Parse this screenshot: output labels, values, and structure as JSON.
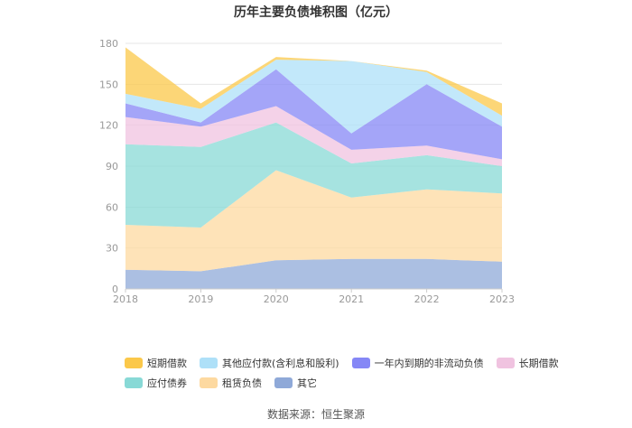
{
  "chart_data": {
    "type": "area",
    "stacked": true,
    "title": "历年主要负债堆积图（亿元）",
    "x": [
      "2018",
      "2019",
      "2020",
      "2021",
      "2022",
      "2023"
    ],
    "ylim": [
      0,
      180
    ],
    "yticks": [
      0,
      30,
      60,
      90,
      120,
      150,
      180
    ],
    "grid": true,
    "legend_position": "bottom",
    "series": [
      {
        "name": "其它",
        "color": "#8fa9d8",
        "values": [
          14,
          13,
          21,
          22,
          22,
          20
        ]
      },
      {
        "name": "租赁负债",
        "color": "#fdd9a0",
        "values": [
          33,
          32,
          66,
          45,
          51,
          50
        ]
      },
      {
        "name": "应付债券",
        "color": "#88d9d6",
        "values": [
          59,
          59,
          35,
          25,
          25,
          20
        ]
      },
      {
        "name": "长期借款",
        "color": "#f0c3e0",
        "values": [
          20,
          15,
          12,
          10,
          7,
          5
        ]
      },
      {
        "name": "一年内到期的非流动负债",
        "color": "#8587f6",
        "values": [
          10,
          3,
          27,
          12,
          45,
          24
        ]
      },
      {
        "name": "其他应付款(含利息和股利)",
        "color": "#aee0f8",
        "values": [
          7,
          10,
          7,
          53,
          9,
          8
        ]
      },
      {
        "name": "短期借款",
        "color": "#fbc84a",
        "values": [
          34,
          4,
          2,
          0,
          1,
          9
        ]
      }
    ]
  },
  "legend_rows": [
    [
      "短期借款",
      "其他应付款(含利息和股利)",
      "一年内到期的非流动负债",
      "长期借款"
    ],
    [
      "应付债券",
      "租赁负债",
      "其它"
    ]
  ],
  "source": "数据来源：恒生聚源"
}
